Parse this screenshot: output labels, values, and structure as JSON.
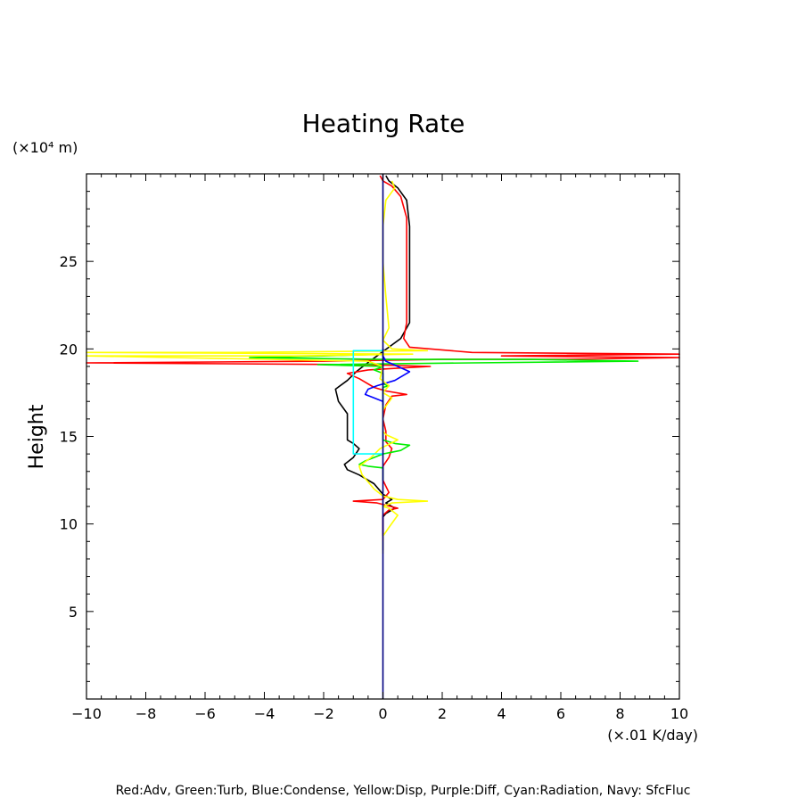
{
  "chart_data": {
    "type": "line",
    "title": "Heating Rate",
    "ylabel": "Height",
    "y_unit": "(×10⁴ m)",
    "x_unit": "(×.01 K/day)",
    "footer": "Red:Adv, Green:Turb, Blue:Condense, Yellow:Disp, Purple:Diff, Cyan:Radiation, Navy: SfcFluc",
    "xlim": [
      -10,
      10
    ],
    "ylim": [
      0,
      30
    ],
    "x_ticks": [
      -10,
      -8,
      -6,
      -4,
      -2,
      0,
      2,
      4,
      6,
      8,
      10
    ],
    "y_ticks": [
      5,
      10,
      15,
      20,
      25
    ],
    "grid": false,
    "series": [
      {
        "color": "#000000",
        "points": [
          [
            0,
            8.5
          ],
          [
            0,
            10.4
          ],
          [
            0.1,
            10.6
          ],
          [
            0.4,
            10.9
          ],
          [
            0.1,
            11.2
          ],
          [
            0.3,
            11.4
          ],
          [
            0,
            11.7
          ],
          [
            -0.3,
            12.3
          ],
          [
            -0.8,
            12.8
          ],
          [
            -1.2,
            13.1
          ],
          [
            -1.3,
            13.4
          ],
          [
            -1.0,
            13.8
          ],
          [
            -0.8,
            14.3
          ],
          [
            -1.0,
            14.6
          ],
          [
            -1.2,
            14.8
          ],
          [
            -1.2,
            15.5
          ],
          [
            -1.2,
            16.3
          ],
          [
            -1.5,
            17.0
          ],
          [
            -1.6,
            17.7
          ],
          [
            -1.2,
            18.2
          ],
          [
            -0.9,
            18.7
          ],
          [
            -0.6,
            19.1
          ],
          [
            -0.2,
            19.6
          ],
          [
            0.2,
            20.1
          ],
          [
            0.6,
            20.6
          ],
          [
            0.9,
            21.5
          ],
          [
            0.9,
            23
          ],
          [
            0.9,
            25
          ],
          [
            0.9,
            27
          ],
          [
            0.8,
            28.5
          ],
          [
            0.5,
            29.2
          ],
          [
            0.2,
            29.6
          ],
          [
            0.1,
            29.9
          ]
        ]
      },
      {
        "color": "#ff0000",
        "points": [
          [
            0,
            9.0
          ],
          [
            0,
            10.5
          ],
          [
            0.2,
            10.8
          ],
          [
            0.5,
            10.9
          ],
          [
            -0.2,
            11.2
          ],
          [
            -1.0,
            11.3
          ],
          [
            0,
            11.4
          ],
          [
            0.2,
            11.8
          ],
          [
            0,
            12.5
          ],
          [
            0,
            13.3
          ],
          [
            0.2,
            13.8
          ],
          [
            0.3,
            14.3
          ],
          [
            0.1,
            14.7
          ],
          [
            0.1,
            15.3
          ],
          [
            0,
            16.0
          ],
          [
            0.1,
            16.8
          ],
          [
            0.3,
            17.3
          ],
          [
            0.8,
            17.4
          ],
          [
            0.1,
            17.6
          ],
          [
            -0.3,
            17.8
          ],
          [
            -0.8,
            18.3
          ],
          [
            -1.2,
            18.6
          ],
          [
            -0.5,
            18.8
          ],
          [
            0.5,
            18.9
          ],
          [
            1.6,
            19.0
          ],
          [
            -0.5,
            19.1
          ],
          [
            -10,
            19.2
          ],
          [
            -2,
            19.3
          ],
          [
            2,
            19.4
          ],
          [
            6,
            19.4
          ],
          [
            10,
            19.5
          ],
          [
            4,
            19.6
          ],
          [
            10,
            19.7
          ],
          [
            3,
            19.8
          ],
          [
            0.9,
            20.1
          ],
          [
            0.7,
            20.6
          ],
          [
            0.8,
            21.5
          ],
          [
            0.8,
            23.5
          ],
          [
            0.8,
            25.5
          ],
          [
            0.8,
            27.5
          ],
          [
            0.6,
            28.7
          ],
          [
            0.3,
            29.3
          ],
          [
            0,
            29.6
          ],
          [
            -0.1,
            29.9
          ]
        ]
      },
      {
        "color": "#00ee00",
        "points": [
          [
            0,
            12.5
          ],
          [
            0,
            13.2
          ],
          [
            -0.5,
            13.3
          ],
          [
            -0.8,
            13.4
          ],
          [
            -0.6,
            13.6
          ],
          [
            -0.3,
            13.8
          ],
          [
            0,
            14.0
          ],
          [
            0.3,
            14.1
          ],
          [
            0.6,
            14.2
          ],
          [
            0.9,
            14.5
          ],
          [
            0.4,
            14.6
          ],
          [
            0,
            14.8
          ],
          [
            0,
            17.0
          ],
          [
            0,
            17.8
          ],
          [
            0.2,
            17.9
          ],
          [
            0,
            18.0
          ],
          [
            0,
            18.6
          ],
          [
            -0.3,
            18.8
          ],
          [
            0,
            19.0
          ],
          [
            -2.2,
            19.1
          ],
          [
            3,
            19.2
          ],
          [
            8.6,
            19.3
          ],
          [
            5,
            19.4
          ],
          [
            0,
            19.4
          ],
          [
            -4.5,
            19.5
          ],
          [
            -2,
            19.6
          ],
          [
            0,
            19.7
          ],
          [
            0,
            20.0
          ]
        ]
      },
      {
        "color": "#0000ff",
        "points": [
          [
            0,
            16.8
          ],
          [
            0,
            17.0
          ],
          [
            -0.3,
            17.2
          ],
          [
            -0.6,
            17.4
          ],
          [
            -0.5,
            17.7
          ],
          [
            -0.2,
            17.9
          ],
          [
            0.4,
            18.2
          ],
          [
            0.9,
            18.7
          ],
          [
            0.5,
            19.0
          ],
          [
            0.1,
            19.3
          ],
          [
            0,
            19.6
          ],
          [
            0,
            20.0
          ]
        ]
      },
      {
        "color": "#ffff00",
        "points": [
          [
            0,
            8.3
          ],
          [
            0,
            9.3
          ],
          [
            0.2,
            9.8
          ],
          [
            0.5,
            10.5
          ],
          [
            0.2,
            10.9
          ],
          [
            0,
            11.0
          ],
          [
            0.3,
            11.2
          ],
          [
            1.5,
            11.3
          ],
          [
            0.5,
            11.4
          ],
          [
            0,
            11.6
          ],
          [
            -0.3,
            12.0
          ],
          [
            -0.5,
            12.4
          ],
          [
            -0.7,
            12.8
          ],
          [
            -0.8,
            13.3
          ],
          [
            -0.4,
            13.8
          ],
          [
            -0.1,
            14.3
          ],
          [
            0.5,
            14.8
          ],
          [
            0.1,
            15.1
          ],
          [
            0,
            15.3
          ],
          [
            0,
            16.5
          ],
          [
            0.3,
            17.2
          ],
          [
            0,
            17.5
          ],
          [
            0.2,
            17.9
          ],
          [
            -0.1,
            18.3
          ],
          [
            0,
            19.0
          ],
          [
            -0.5,
            19.3
          ],
          [
            -10,
            19.6
          ],
          [
            -3,
            19.6
          ],
          [
            1,
            19.7
          ],
          [
            -10,
            19.8
          ],
          [
            -5,
            19.8
          ],
          [
            1.5,
            19.9
          ],
          [
            0.3,
            20.0
          ],
          [
            0,
            20.5
          ],
          [
            0.2,
            21.2
          ],
          [
            0.1,
            23
          ],
          [
            0,
            25
          ],
          [
            0,
            27
          ],
          [
            0.1,
            28.5
          ],
          [
            0.4,
            29.2
          ],
          [
            0.3,
            29.6
          ]
        ]
      },
      {
        "color": "#00ffff",
        "points": [
          [
            0,
            14.0
          ],
          [
            -1.0,
            14.0
          ],
          [
            -1.0,
            17.0
          ],
          [
            -1.0,
            19.9
          ],
          [
            0,
            19.9
          ]
        ]
      },
      {
        "color": "#000080",
        "points": [
          [
            0,
            0
          ],
          [
            0,
            30
          ]
        ]
      }
    ]
  }
}
